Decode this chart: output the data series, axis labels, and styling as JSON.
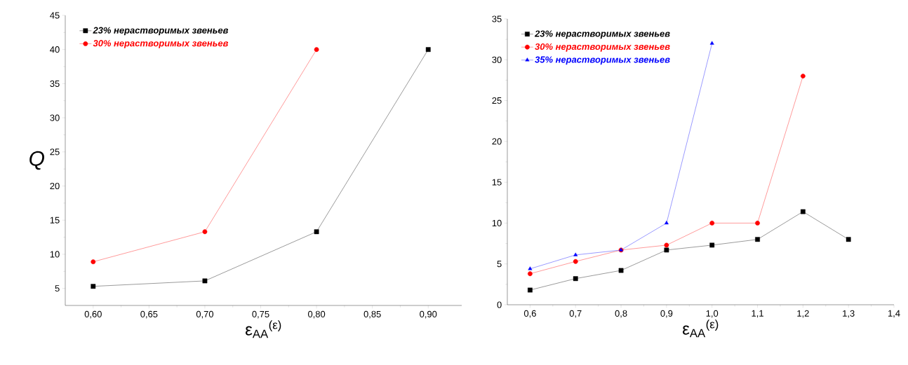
{
  "chart_data": [
    {
      "type": "line",
      "xlabel": "ε$_{AA}$$^{(ε)}$",
      "ylabel": "Q",
      "xlim": [
        0.575,
        0.93
      ],
      "ylim": [
        2.5,
        45
      ],
      "xticks": [
        {
          "value": 0.6,
          "label": "0,60"
        },
        {
          "value": 0.65,
          "label": "0,65"
        },
        {
          "value": 0.7,
          "label": "0,70"
        },
        {
          "value": 0.75,
          "label": "0,75"
        },
        {
          "value": 0.8,
          "label": "0,80"
        },
        {
          "value": 0.85,
          "label": "0,85"
        },
        {
          "value": 0.9,
          "label": "0,90"
        }
      ],
      "yticks": [
        5,
        10,
        15,
        20,
        25,
        30,
        35,
        40,
        45
      ],
      "legend": "top left",
      "grid": false,
      "series": [
        {
          "name": "23% нерастворимых звеньев",
          "color": "#000000",
          "marker": "square",
          "x": [
            0.6,
            0.7,
            0.8,
            0.9
          ],
          "values": [
            5.3,
            6.1,
            13.3,
            40
          ]
        },
        {
          "name": "30% нерастворимых звеньев",
          "color": "#ff0000",
          "marker": "circle",
          "x": [
            0.6,
            0.7,
            0.8
          ],
          "values": [
            8.9,
            13.3,
            40
          ]
        }
      ]
    },
    {
      "type": "line",
      "xlabel": "ε$_{AA}$$^{(ε)}$",
      "xlim": [
        0.55,
        1.4
      ],
      "ylim": [
        0,
        35
      ],
      "xticks": [
        {
          "value": 0.6,
          "label": "0,6"
        },
        {
          "value": 0.7,
          "label": "0,7"
        },
        {
          "value": 0.8,
          "label": "0,8"
        },
        {
          "value": 0.9,
          "label": "0,9"
        },
        {
          "value": 1.0,
          "label": "1,0"
        },
        {
          "value": 1.1,
          "label": "1,1"
        },
        {
          "value": 1.2,
          "label": "1,2"
        },
        {
          "value": 1.3,
          "label": "1,3"
        },
        {
          "value": 1.4,
          "label": "1,4"
        }
      ],
      "yticks": [
        0,
        5,
        10,
        15,
        20,
        25,
        30,
        35
      ],
      "legend": "top left",
      "grid": false,
      "series": [
        {
          "name": "23% нерастворимых звеньев",
          "color": "#000000",
          "marker": "square",
          "x": [
            0.6,
            0.7,
            0.8,
            0.9,
            1.0,
            1.1,
            1.2,
            1.3
          ],
          "values": [
            1.8,
            3.2,
            4.2,
            6.7,
            7.3,
            8,
            11.4,
            8
          ]
        },
        {
          "name": "30% нерастворимых звеньев",
          "color": "#ff0000",
          "marker": "circle",
          "x": [
            0.6,
            0.7,
            0.8,
            0.9,
            1.0,
            1.1,
            1.2
          ],
          "values": [
            3.8,
            5.3,
            6.7,
            7.3,
            10,
            10,
            28
          ]
        },
        {
          "name": "35% нерастворимых звеньев",
          "color": "#0000ff",
          "marker": "triangle",
          "x": [
            0.6,
            0.7,
            0.8,
            0.9,
            1.0
          ],
          "values": [
            4.4,
            6.1,
            6.7,
            10,
            32
          ]
        }
      ]
    }
  ]
}
